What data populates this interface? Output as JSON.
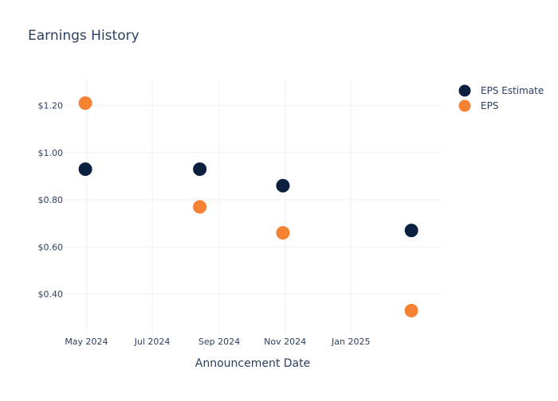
{
  "chart_data": {
    "type": "scatter",
    "title": "Earnings History",
    "xlabel": "Announcement Date",
    "ylabel": "",
    "x_ticks": [
      {
        "date": "2024-05-01",
        "label": "May 2024"
      },
      {
        "date": "2024-07-01",
        "label": "Jul 2024"
      },
      {
        "date": "2024-09-01",
        "label": "Sep 2024"
      },
      {
        "date": "2024-11-01",
        "label": "Nov 2024"
      },
      {
        "date": "2025-01-01",
        "label": "Jan 2025"
      }
    ],
    "y_ticks": [
      {
        "value": 0.4,
        "label": "$0.40"
      },
      {
        "value": 0.6,
        "label": "$0.60"
      },
      {
        "value": 0.8,
        "label": "$0.80"
      },
      {
        "value": 1.0,
        "label": "$1.00"
      },
      {
        "value": 1.2,
        "label": "$1.20"
      }
    ],
    "xlim": [
      "2024-04-10",
      "2025-03-26"
    ],
    "ylim": [
      0.23,
      1.31
    ],
    "grid": true,
    "legend_position": "top-right",
    "series": [
      {
        "name": "EPS Estimate",
        "color": "#0b1f3f",
        "points": [
          {
            "x": "2024-04-30",
            "y": 0.93
          },
          {
            "x": "2024-08-14",
            "y": 0.93
          },
          {
            "x": "2024-10-30",
            "y": 0.86
          },
          {
            "x": "2025-02-26",
            "y": 0.67
          }
        ]
      },
      {
        "name": "EPS",
        "color": "#f58233",
        "points": [
          {
            "x": "2024-04-30",
            "y": 1.21
          },
          {
            "x": "2024-08-14",
            "y": 0.77
          },
          {
            "x": "2024-10-30",
            "y": 0.66
          },
          {
            "x": "2025-02-26",
            "y": 0.33
          }
        ]
      }
    ]
  }
}
